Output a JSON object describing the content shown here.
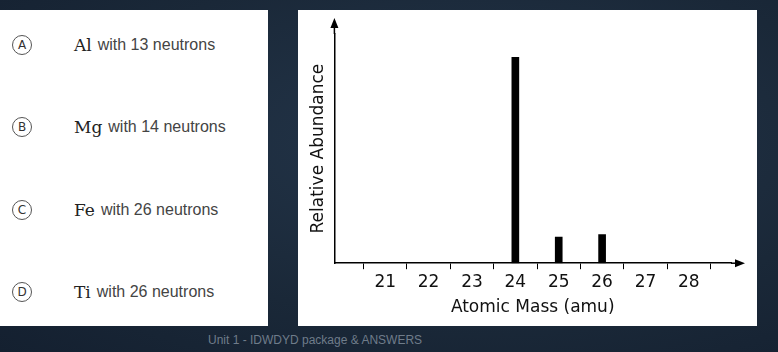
{
  "chart_data": {
    "type": "bar",
    "x_label": "Atomic Mass (amu)",
    "y_label": "Relative Abundance",
    "x": [
      24,
      25,
      26
    ],
    "values": [
      79,
      10,
      11
    ],
    "color": "#000000",
    "xlim": [
      20.4,
      28.4
    ],
    "xticks": [
      21,
      22,
      23,
      24,
      25,
      26,
      27,
      28
    ],
    "ylim": [
      0,
      88
    ],
    "grid": false,
    "tick_labels": "x"
  },
  "choices": [
    {
      "letter": "A",
      "element": "Al",
      "text": "with 13 neutrons"
    },
    {
      "letter": "B",
      "element": "Mg",
      "text": "with 14 neutrons"
    },
    {
      "letter": "C",
      "element": "Fe",
      "text": "with 26 neutrons"
    },
    {
      "letter": "D",
      "element": "Ti",
      "text": "with 26 neutrons"
    }
  ],
  "footer": "Unit 1 - IDWDYD package & ANSWERS"
}
